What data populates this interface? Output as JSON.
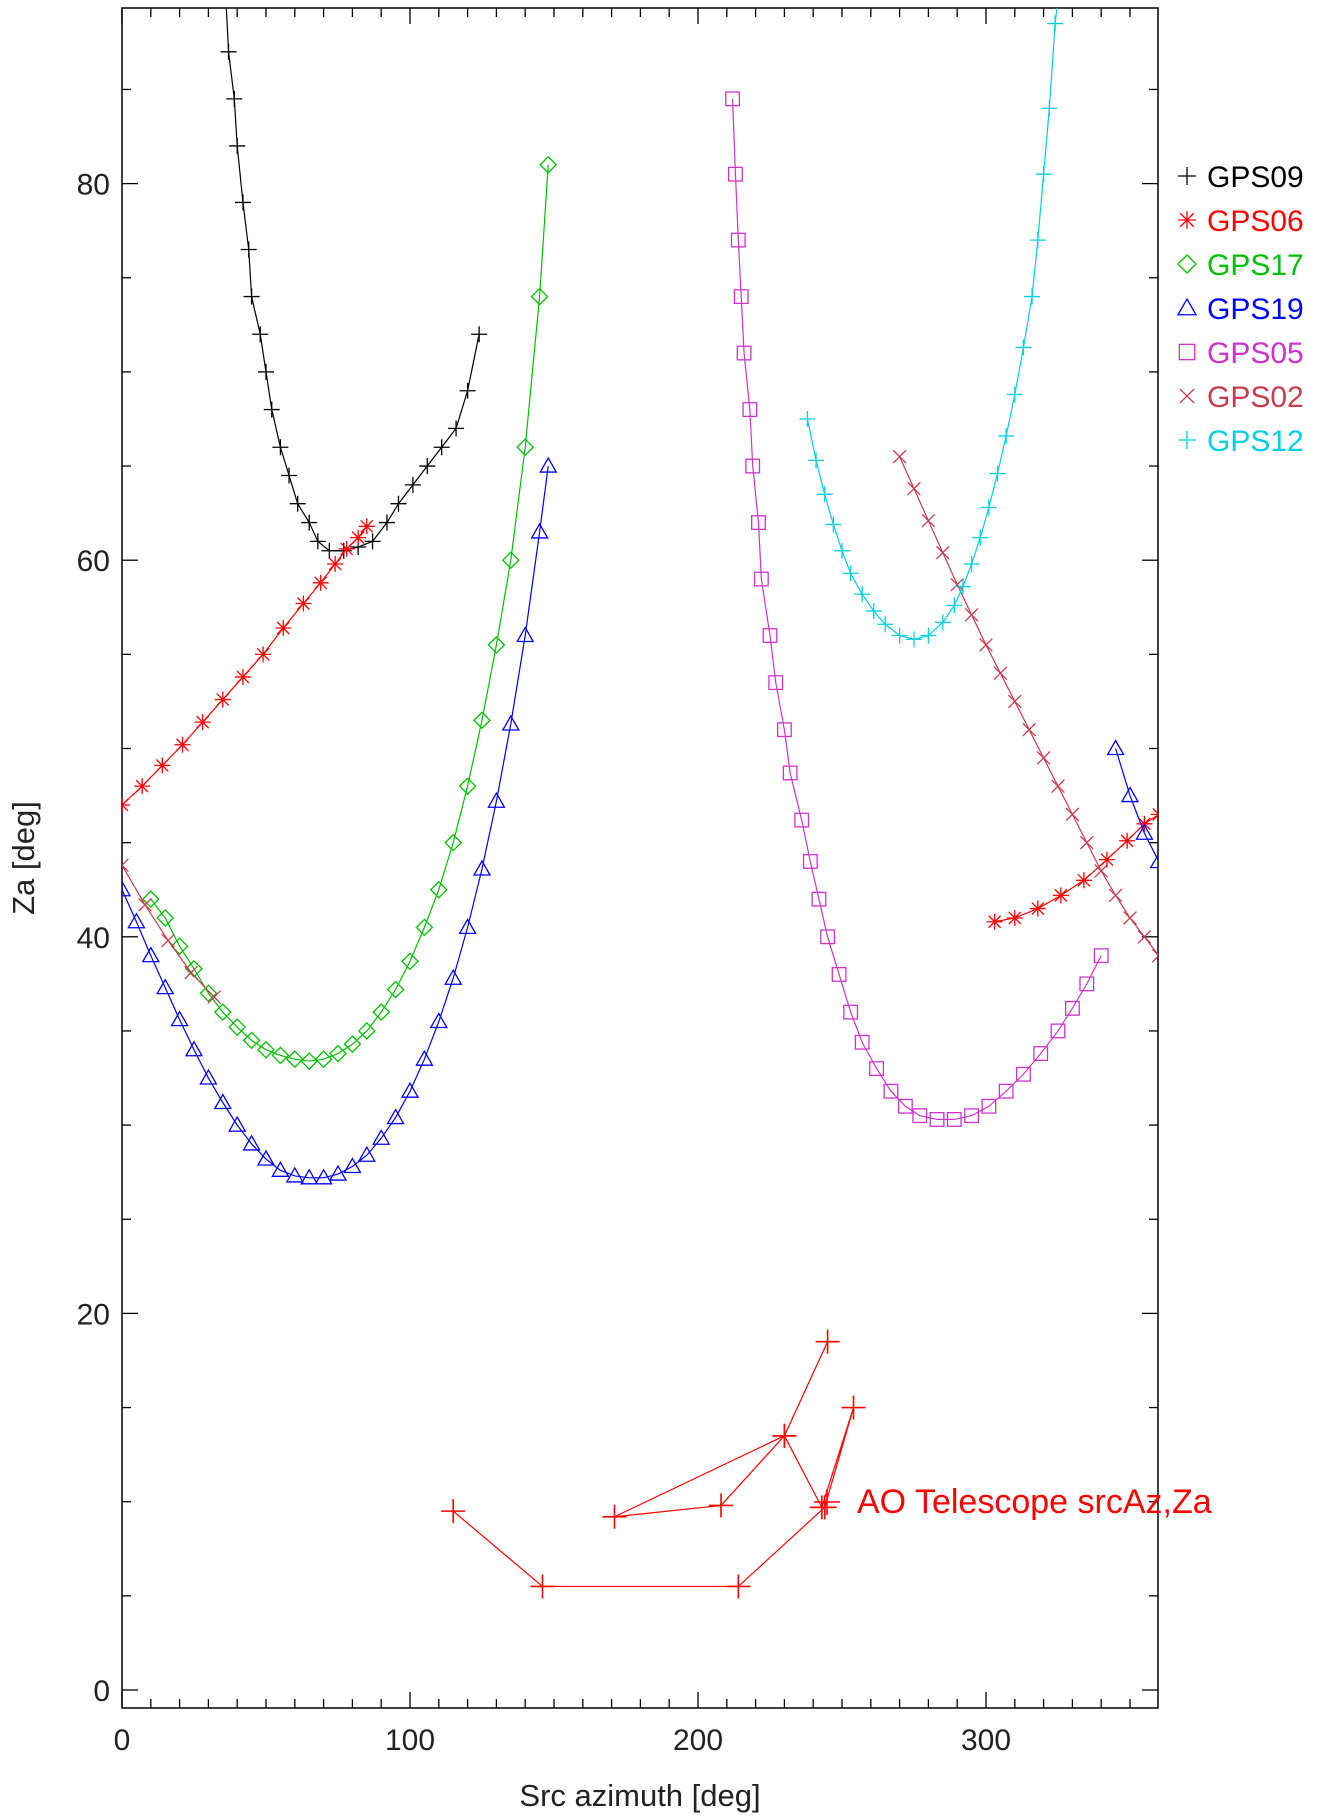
{
  "chart_data": {
    "type": "line",
    "xlabel": "Src azimuth [deg]",
    "ylabel": "Za [deg]",
    "xlim": [
      0,
      360
    ],
    "ylim": [
      -1,
      90
    ],
    "x_ticks": [
      0,
      100,
      200,
      300
    ],
    "y_ticks": [
      0,
      20,
      40,
      60,
      80
    ],
    "x_tick_labels": [
      "0",
      "100",
      "200",
      "300"
    ],
    "y_tick_labels": [
      "0",
      "20",
      "40",
      "60",
      "80"
    ],
    "legend_position": "right",
    "grid": false,
    "series": [
      {
        "name": "GPS09",
        "color": "#000000",
        "marker": "plus",
        "x": [
          36,
          37,
          39,
          40,
          42,
          44,
          45,
          48,
          50,
          52,
          55,
          58,
          61,
          65,
          68,
          72,
          77,
          82,
          87,
          92,
          96,
          101,
          106,
          111,
          116,
          120,
          124
        ],
        "y": [
          90,
          87,
          84.5,
          82,
          79,
          76.5,
          74,
          72,
          70,
          68,
          66,
          64.5,
          63,
          62,
          61,
          60.5,
          60.5,
          60.7,
          61,
          62,
          63,
          64,
          65,
          66,
          67,
          69,
          72
        ]
      },
      {
        "name": "GPS06",
        "color": "#ff0000",
        "marker": "asterisk",
        "x": [
          0,
          7,
          14,
          21,
          28,
          35,
          42,
          49,
          56,
          63,
          69,
          74,
          78,
          82,
          85,
          303,
          310,
          318,
          326,
          334,
          342,
          349,
          355,
          360
        ],
        "y": [
          47,
          48,
          49.1,
          50.2,
          51.4,
          52.6,
          53.8,
          55,
          56.4,
          57.7,
          58.8,
          59.8,
          60.6,
          61.2,
          61.8,
          40.8,
          41,
          41.5,
          42.2,
          43,
          44.1,
          45.1,
          46,
          46.5
        ]
      },
      {
        "name": "GPS17",
        "color": "#00c000",
        "marker": "diamond",
        "x": [
          10,
          15,
          20,
          25,
          30,
          35,
          40,
          45,
          50,
          55,
          60,
          65,
          70,
          75,
          80,
          85,
          90,
          95,
          100,
          105,
          110,
          115,
          120,
          125,
          130,
          135,
          140,
          145,
          148
        ],
        "y": [
          42,
          41,
          39.5,
          38.3,
          37,
          36,
          35.2,
          34.5,
          34,
          33.7,
          33.5,
          33.4,
          33.5,
          33.8,
          34.3,
          35,
          36,
          37.2,
          38.7,
          40.5,
          42.5,
          45,
          48,
          51.5,
          55.5,
          60,
          66,
          74,
          81
        ]
      },
      {
        "name": "GPS19",
        "color": "#0000ff",
        "marker": "triangle",
        "x": [
          0,
          5,
          10,
          15,
          20,
          25,
          30,
          35,
          40,
          45,
          50,
          55,
          60,
          65,
          70,
          75,
          80,
          85,
          90,
          95,
          100,
          105,
          110,
          115,
          120,
          125,
          130,
          135,
          140,
          145,
          148,
          345,
          350,
          355,
          360
        ],
        "y": [
          42.5,
          40.8,
          39,
          37.3,
          35.6,
          34,
          32.5,
          31.2,
          30,
          29,
          28.2,
          27.6,
          27.3,
          27.2,
          27.2,
          27.4,
          27.8,
          28.4,
          29.3,
          30.4,
          31.8,
          33.5,
          35.5,
          37.8,
          40.5,
          43.6,
          47.2,
          51.3,
          56,
          61.5,
          65,
          50,
          47.5,
          45.5,
          44
        ]
      },
      {
        "name": "GPS05",
        "color": "#cc33cc",
        "marker": "square",
        "x": [
          212,
          213,
          214,
          215,
          216,
          218,
          219,
          221,
          222,
          225,
          227,
          230,
          232,
          236,
          239,
          242,
          245,
          249,
          253,
          257,
          262,
          267,
          272,
          277,
          283,
          289,
          295,
          301,
          307,
          313,
          319,
          325,
          330,
          335,
          340
        ],
        "y": [
          84.5,
          80.5,
          77,
          74,
          71,
          68,
          65,
          62,
          59,
          56,
          53.5,
          51,
          48.7,
          46.2,
          44,
          42,
          40,
          38,
          36,
          34.4,
          33,
          31.8,
          31,
          30.5,
          30.3,
          30.3,
          30.5,
          31,
          31.8,
          32.7,
          33.8,
          35,
          36.2,
          37.5,
          39
        ]
      },
      {
        "name": "GPS02",
        "color": "#c83c50",
        "marker": "x",
        "x": [
          0,
          8,
          16,
          24,
          32,
          270,
          275,
          280,
          285,
          290,
          295,
          300,
          305,
          310,
          315,
          320,
          325,
          330,
          335,
          340,
          345,
          350,
          355,
          360
        ],
        "y": [
          43.8,
          41.7,
          39.8,
          38.1,
          36.8,
          65.5,
          63.8,
          62.1,
          60.4,
          58.7,
          57.1,
          55.5,
          54,
          52.5,
          51,
          49.5,
          48,
          46.5,
          45,
          43.5,
          42.2,
          41,
          40,
          39
        ]
      },
      {
        "name": "GPS12",
        "color": "#00d0e0",
        "marker": "plus",
        "x": [
          238,
          241,
          244,
          247,
          250,
          253,
          257,
          261,
          265,
          270,
          275,
          280,
          285,
          289,
          292,
          295,
          298,
          301,
          304,
          307,
          310,
          313,
          316,
          318,
          320,
          322,
          324,
          326
        ],
        "y": [
          67.5,
          65.3,
          63.5,
          61.9,
          60.5,
          59.3,
          58.2,
          57.3,
          56.6,
          56,
          55.8,
          56,
          56.7,
          57.6,
          58.6,
          59.8,
          61.2,
          62.8,
          64.6,
          66.6,
          68.8,
          71.3,
          74,
          77,
          80.5,
          84,
          88.5,
          91
        ]
      },
      {
        "name": "AO Telescope srcAz,Za",
        "color": "#ff0000",
        "marker": "plus-large",
        "x": [
          115,
          146,
          214,
          244,
          254,
          243,
          230,
          171,
          208,
          230,
          245
        ],
        "y": [
          9.5,
          5.5,
          5.5,
          9.7,
          15,
          9.7,
          13.5,
          9.2,
          9.8,
          13.5,
          18.5
        ]
      }
    ]
  },
  "legend": [
    {
      "label": "GPS09",
      "color": "#000000",
      "marker": "plus"
    },
    {
      "label": "GPS06",
      "color": "#ff0000",
      "marker": "asterisk"
    },
    {
      "label": "GPS17",
      "color": "#00c000",
      "marker": "diamond"
    },
    {
      "label": "GPS19",
      "color": "#0000ff",
      "marker": "triangle"
    },
    {
      "label": "GPS05",
      "color": "#cc33cc",
      "marker": "square"
    },
    {
      "label": "GPS02",
      "color": "#c83c50",
      "marker": "x"
    },
    {
      "label": "GPS12",
      "color": "#00d0e0",
      "marker": "plus"
    }
  ],
  "annotation": {
    "label": "AO Telescope srcAz,Za",
    "color": "#ff0000",
    "marker": "plus-large"
  }
}
